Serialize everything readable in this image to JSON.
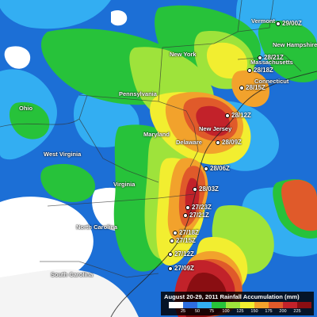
{
  "map": {
    "state_labels": [
      {
        "id": "vermont",
        "text": "Vermont"
      },
      {
        "id": "new-hampshire",
        "text": "New Hampshire"
      },
      {
        "id": "new-york",
        "text": "New York"
      },
      {
        "id": "massachusetts",
        "text": "Massachusetts"
      },
      {
        "id": "connecticut",
        "text": "Connecticut"
      },
      {
        "id": "pennsylvania",
        "text": "Pennsylvania"
      },
      {
        "id": "new-jersey",
        "text": "New Jersey"
      },
      {
        "id": "ohio",
        "text": "Ohio"
      },
      {
        "id": "maryland",
        "text": "Maryland"
      },
      {
        "id": "delaware",
        "text": "Delaware"
      },
      {
        "id": "west-virginia",
        "text": "West Virginia"
      },
      {
        "id": "virginia",
        "text": "Virginia"
      },
      {
        "id": "north-carolina",
        "text": "North Carolina"
      },
      {
        "id": "south-carolina",
        "text": "South Carolina"
      }
    ],
    "storm_track": [
      {
        "id": "t1",
        "label": "29/00Z"
      },
      {
        "id": "t2",
        "label": "28/21Z"
      },
      {
        "id": "t3",
        "label": "28/18Z"
      },
      {
        "id": "t4",
        "label": "28/15Z"
      },
      {
        "id": "t5",
        "label": "28/12Z"
      },
      {
        "id": "t6",
        "label": "28/09Z"
      },
      {
        "id": "t7",
        "label": "28/06Z"
      },
      {
        "id": "t8",
        "label": "28/03Z"
      },
      {
        "id": "t9",
        "label": "27/23Z"
      },
      {
        "id": "t10",
        "label": "27/21Z"
      },
      {
        "id": "t11",
        "label": "27/18Z"
      },
      {
        "id": "t12",
        "label": "27/15Z"
      },
      {
        "id": "t13",
        "label": "27/12Z"
      },
      {
        "id": "t14",
        "label": "27/09Z"
      }
    ]
  },
  "legend": {
    "title": "August 20-29, 2011 Rainfall Accumulation (mm)",
    "ticks": [
      "25",
      "50",
      "75",
      "100",
      "125",
      "150",
      "175",
      "200",
      "225"
    ],
    "colors": [
      "#ffffff",
      "#2e6de0",
      "#33aef2",
      "#27c23a",
      "#9ee33b",
      "#f2ee30",
      "#f2a22c",
      "#e05a2a",
      "#c2222a",
      "#8a0e12"
    ]
  }
}
